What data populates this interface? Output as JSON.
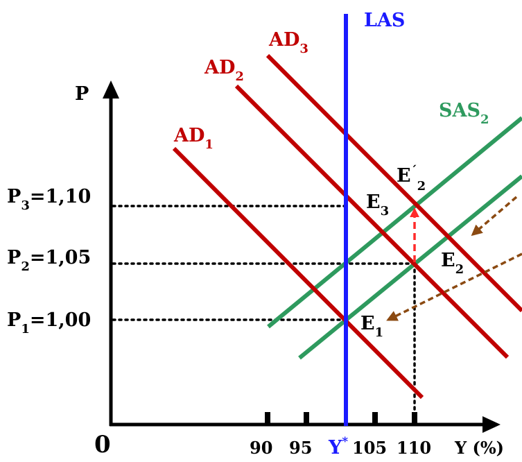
{
  "colors": {
    "ad": "#c00000",
    "sas": "#2e9a5e",
    "las": "#1a1aff",
    "axis": "#000000",
    "arrow_red": "#ff2a2a",
    "arrow_brown": "#8b4a12"
  },
  "axes": {
    "origin": "0",
    "y_axis": "P",
    "x_axis": "Y (%)"
  },
  "x_ticks": [
    {
      "label": "90",
      "value": 90
    },
    {
      "label": "95",
      "value": 95
    },
    {
      "label": "Y",
      "sup": "*",
      "value": 100
    },
    {
      "label": "105",
      "value": 105
    },
    {
      "label": "110",
      "value": 110
    }
  ],
  "price_levels": [
    {
      "base": "P",
      "sub": "3",
      "text": "=1,10",
      "value": 1.1
    },
    {
      "base": "P",
      "sub": "2",
      "text": "=1,05",
      "value": 1.05
    },
    {
      "base": "P",
      "sub": "1",
      "text": "=1,00",
      "value": 1.0
    }
  ],
  "curves": {
    "las": "LAS",
    "ad1": {
      "base": "AD",
      "sub": "1"
    },
    "ad2": {
      "base": "AD",
      "sub": "2"
    },
    "ad3": {
      "base": "AD",
      "sub": "3"
    },
    "sas2": {
      "base": "SAS",
      "sub": "2"
    }
  },
  "points": {
    "e1": {
      "base": "E",
      "sub": "1"
    },
    "e2": {
      "base": "E",
      "sub": "2"
    },
    "e3": {
      "base": "E",
      "sub": "3"
    },
    "e2p": {
      "base": "E",
      "prime": "´",
      "sub": "2"
    }
  }
}
